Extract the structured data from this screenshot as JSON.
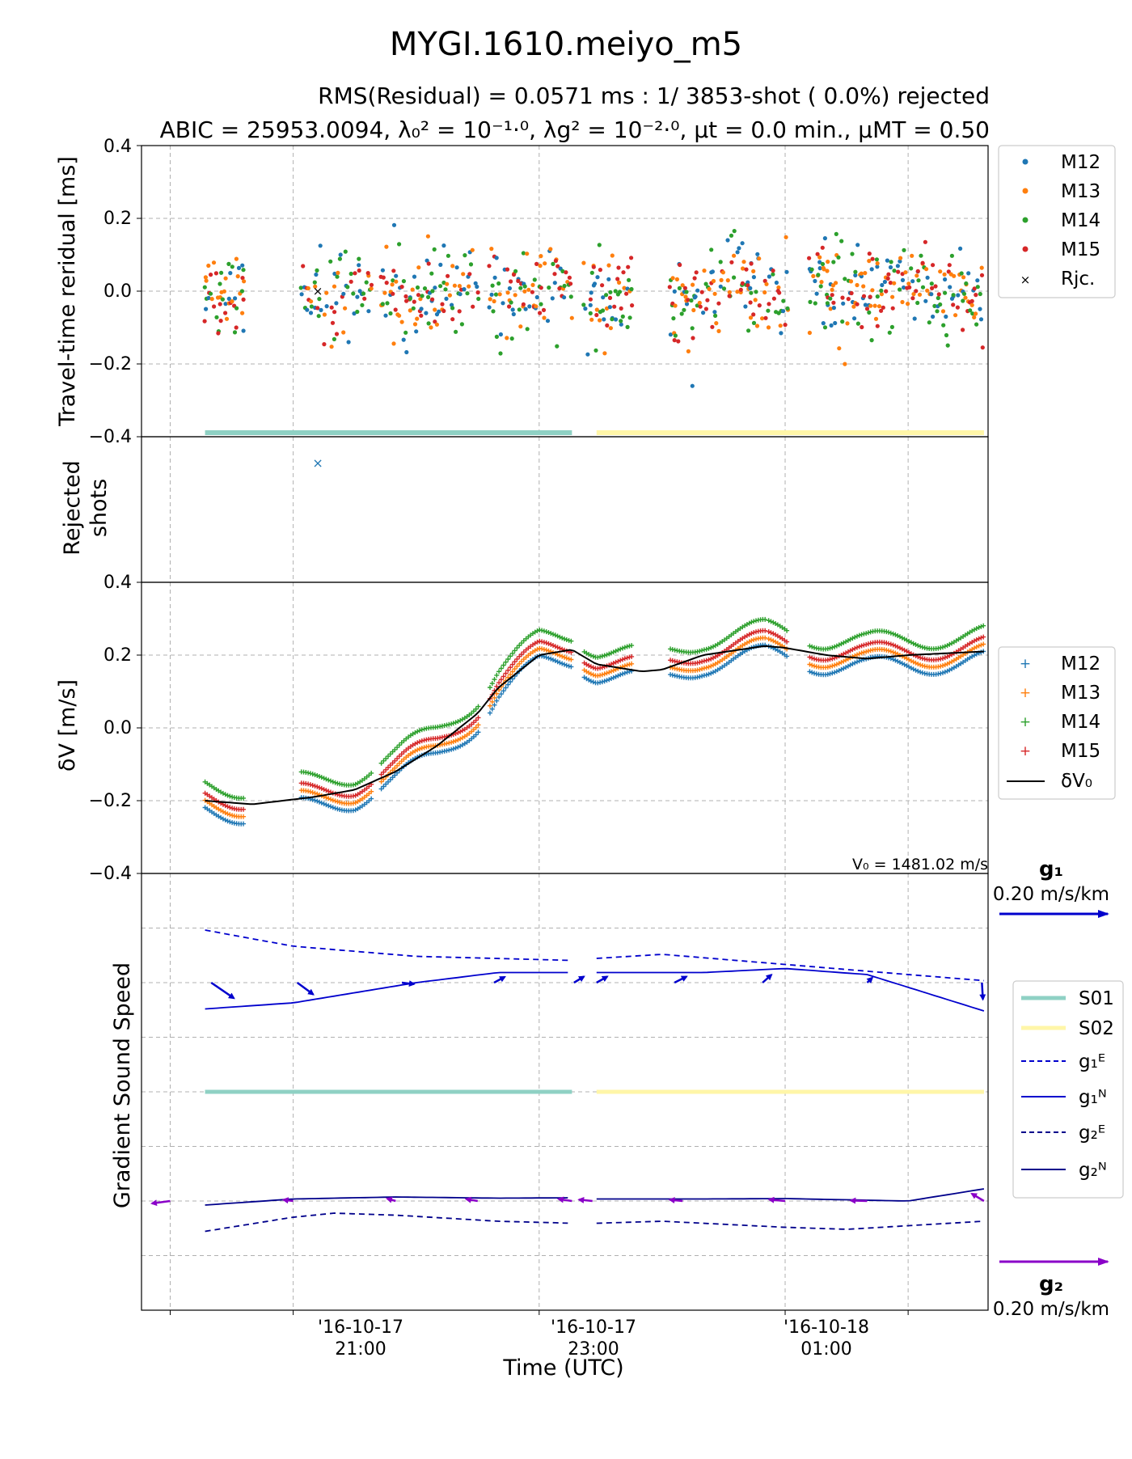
{
  "title": "MYGI.1610.meiyo_m5",
  "subtitle_rms": "RMS(Residual) = 0.0571 ms :     1/ 3853-shot ( 0.0%) rejected",
  "subtitle_abic": "ABIC =   25953.0094, λ₀² = 10⁻¹·⁰, λg² = 10⁻²·⁰, μt = 0.0 min., μMT = 0.50",
  "xlabel": "Time (UTC)",
  "colors": {
    "M12": "#1f77b4",
    "M13": "#ff7f0e",
    "M14": "#2ca02c",
    "M15": "#d62728",
    "S01": "#8fd1c4",
    "S02": "#fff6a8",
    "g1": "#0000cd",
    "g2": "#00008b",
    "g1_arrow": "#0000cd",
    "g2_arrow": "#8a00c8",
    "dV0": "#000000"
  },
  "chart_data": [
    {
      "type": "scatter",
      "panel": "residual",
      "ylabel": "Travel-time reridual [ms]",
      "ylim": [
        -0.4,
        0.4
      ],
      "yticks": [
        "0.4",
        "0.2",
        "0.0",
        "−0.2",
        "−0.4"
      ],
      "x_unit": "minutes since 2016-10-17 20:00 UTC (tick labels: '16-10-17 21:00, '16-10-17 23:00, '16-10-18 01:00)",
      "x_range": [
        -14,
        399
      ],
      "series_names": [
        "M12",
        "M13",
        "M14",
        "M15"
      ],
      "segments": [
        [
          17,
          36
        ],
        [
          64,
          99
        ],
        [
          103,
          151
        ],
        [
          156,
          196
        ],
        [
          202,
          226
        ],
        [
          244,
          291
        ],
        [
          292,
          301
        ],
        [
          312,
          397
        ]
      ],
      "residual_spread_ms": 0.06,
      "rejected": [
        {
          "x": 72,
          "y": 0.0,
          "label": "Rjc."
        }
      ],
      "legend": [
        "M12",
        "M13",
        "M14",
        "M15",
        "Rjc."
      ],
      "sessions": [
        {
          "name": "S01",
          "start": 17,
          "end": 196
        },
        {
          "name": "S02",
          "start": 208,
          "end": 397
        }
      ]
    },
    {
      "type": "scatter",
      "panel": "rejected",
      "ylabel": "Rejected shots",
      "points": [
        {
          "x": 72,
          "series": "M12"
        }
      ]
    },
    {
      "type": "line",
      "panel": "dV",
      "ylabel": "δV [m/s]",
      "ylim": [
        -0.4,
        0.4
      ],
      "yticks": [
        "0.4",
        "0.2",
        "0.0",
        "−0.2",
        "−0.4"
      ],
      "legend": [
        "M12",
        "M13",
        "M14",
        "M15",
        "δV₀"
      ],
      "v0_note": "V₀ =  1481.02 m/s",
      "station_offsets": {
        "M12": -0.012,
        "M13": -0.003,
        "M14": 0.02,
        "M15": 0.006
      },
      "dV0": {
        "x": [
          17,
          40,
          70,
          90,
          110,
          130,
          150,
          160,
          180,
          196,
          208,
          230,
          240,
          260,
          290,
          300,
          320,
          340,
          360,
          397
        ],
        "y": [
          -0.2,
          -0.21,
          -0.19,
          -0.17,
          -0.12,
          -0.05,
          0.04,
          0.11,
          0.2,
          0.215,
          0.175,
          0.155,
          0.16,
          0.2,
          0.225,
          0.22,
          0.2,
          0.19,
          0.2,
          0.21
        ]
      }
    },
    {
      "type": "line",
      "panel": "gradient",
      "ylabel": "Gradient Sound Speed",
      "legend": [
        "S01",
        "S02",
        "g₁ᴱ",
        "g₁ᴺ",
        "g₂ᴱ",
        "g₂ᴺ"
      ],
      "scale_g1": {
        "label": "g₁",
        "value": "0.20 m/s/km"
      },
      "scale_g2": {
        "label": "g₂",
        "value": "0.20 m/s/km"
      },
      "g1E": {
        "x": [
          17,
          60,
          120,
          196,
          208,
          240,
          300,
          360,
          397
        ],
        "y": [
          0.13,
          0.09,
          0.065,
          0.055,
          0.06,
          0.07,
          0.045,
          0.02,
          0.005
        ]
      },
      "g1N": {
        "x": [
          17,
          60,
          120,
          160,
          196,
          208,
          260,
          300,
          340,
          397
        ],
        "y": [
          -0.065,
          -0.05,
          0.0,
          0.025,
          0.025,
          0.025,
          0.025,
          0.035,
          0.02,
          -0.07
        ]
      },
      "g2E": {
        "x": [
          17,
          60,
          80,
          110,
          160,
          196,
          208,
          240,
          300,
          330,
          397
        ],
        "y": [
          -0.075,
          -0.04,
          -0.03,
          -0.035,
          -0.05,
          -0.055,
          -0.055,
          -0.05,
          -0.065,
          -0.07,
          -0.05
        ]
      },
      "g2N": {
        "x": [
          17,
          60,
          110,
          160,
          196,
          208,
          260,
          300,
          360,
          397
        ],
        "y": [
          -0.01,
          0.005,
          0.01,
          0.007,
          0.008,
          0.005,
          0.005,
          0.006,
          0.0,
          0.03
        ]
      }
    }
  ],
  "x_ticks": [
    {
      "line1": "'16-10-17",
      "line2": "21:00"
    },
    {
      "line1": "'16-10-17",
      "line2": "23:00"
    },
    {
      "line1": "'16-10-18",
      "line2": "01:00"
    }
  ],
  "legend_top": {
    "items": [
      "M12",
      "M13",
      "M14",
      "M15",
      "Rjc."
    ]
  },
  "legend_mid": {
    "items": [
      "M12",
      "M13",
      "M14",
      "M15",
      "δV₀"
    ]
  },
  "legend_bot": {
    "items": [
      "S01",
      "S02",
      "g₁ᴱ",
      "g₁ᴺ",
      "g₂ᴱ",
      "g₂ᴺ"
    ]
  }
}
